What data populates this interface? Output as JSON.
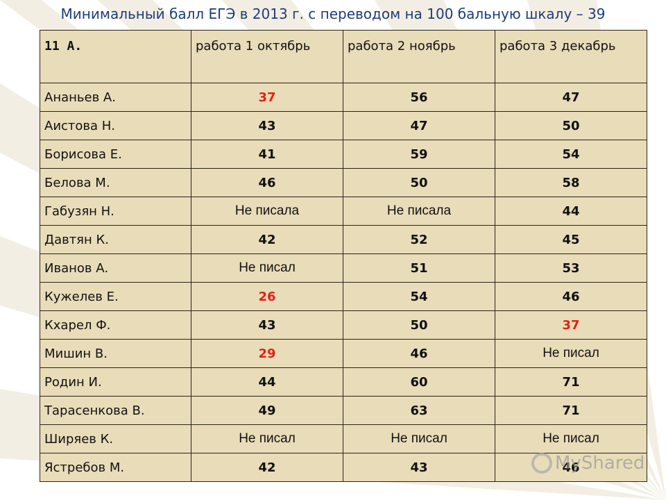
{
  "title": "Минимальный балл ЕГЭ в 2013 г. с переводом на 100 бальную шкалу  – 39",
  "header": [
    "11 А.",
    "работа 1 октябрь",
    "работа 2 ноябрь",
    "работа 3 декабрь"
  ],
  "rows": [
    {
      "name": "Ананьев А.",
      "c1": "37",
      "c2": "56",
      "c3": "47"
    },
    {
      "name": "Аистова Н.",
      "c1": "43",
      "c2": "47",
      "c3": "50"
    },
    {
      "name": "Борисова Е.",
      "c1": "41",
      "c2": "59",
      "c3": "54"
    },
    {
      "name": "Белова М.",
      "c1": "46",
      "c2": "50",
      "c3": "58"
    },
    {
      "name": "Габузян Н.",
      "c1": "Не писала",
      "c2": "Не писала",
      "c3": "44"
    },
    {
      "name": "Давтян К.",
      "c1": "42",
      "c2": "52",
      "c3": "45"
    },
    {
      "name": "Иванов А.",
      "c1": "Не писал",
      "c2": "51",
      "c3": "53"
    },
    {
      "name": "Кужелев Е.",
      "c1": "26",
      "c2": "54",
      "c3": "46"
    },
    {
      "name": "Кхарел Ф.",
      "c1": "43",
      "c2": "50",
      "c3": "37"
    },
    {
      "name": "Мишин В.",
      "c1": "29",
      "c2": "46",
      "c3": "Не писал"
    },
    {
      "name": "Родин И.",
      "c1": "44",
      "c2": "60",
      "c3": "71"
    },
    {
      "name": "Тарасенкова В.",
      "c1": "49",
      "c2": "63",
      "c3": "71"
    },
    {
      "name": "Ширяев К.",
      "c1": "Не писал",
      "c2": "Не писал",
      "c3": "Не писал"
    },
    {
      "name": "Ястребов М.",
      "c1": "42",
      "c2": "43",
      "c3": "46"
    }
  ],
  "colors": {
    "below_min": "#e02318",
    "cell_bg": "#e9dcb9",
    "title": "#1f3c78"
  },
  "logo": {
    "icon": "logo-mark-icon",
    "text": "MyShared"
  }
}
